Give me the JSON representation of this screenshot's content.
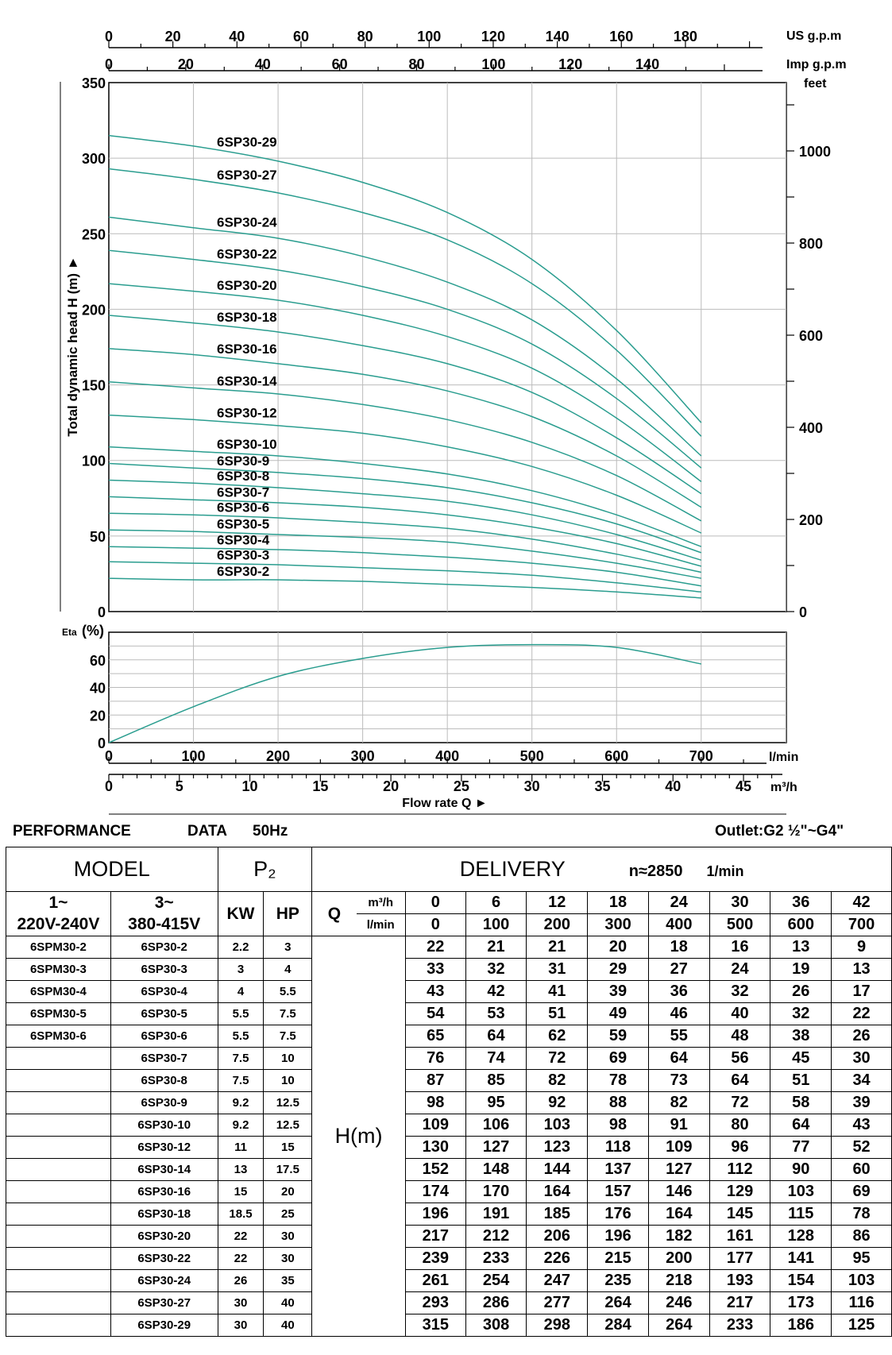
{
  "chart_data": {
    "type": "line",
    "head_chart": {
      "ylabel": "Total dynamic head H (m)",
      "ylim": [
        0,
        350
      ],
      "yticks": [
        0,
        50,
        100,
        150,
        200,
        250,
        300,
        350
      ],
      "right_axis_unit": "feet",
      "right_axis_ticks": [
        "0",
        "200",
        "400",
        "600",
        "800",
        "1000"
      ],
      "top_axis_us_unit": "US g.p.m",
      "top_axis_us_ticks": [
        "0",
        "20",
        "40",
        "60",
        "80",
        "100",
        "120",
        "140",
        "160",
        "180"
      ],
      "top_axis_imp_unit": "Imp g.p.m",
      "top_axis_imp_ticks": [
        "0",
        "20",
        "40",
        "60",
        "80",
        "100",
        "120",
        "140"
      ],
      "x_lmin": [
        0,
        100,
        200,
        300,
        400,
        500,
        600,
        700
      ],
      "series": [
        {
          "name": "6SP30-29",
          "values": [
            315,
            308,
            298,
            284,
            264,
            233,
            186,
            125
          ]
        },
        {
          "name": "6SP30-27",
          "values": [
            293,
            286,
            277,
            264,
            246,
            217,
            173,
            116
          ]
        },
        {
          "name": "6SP30-24",
          "values": [
            261,
            254,
            247,
            235,
            218,
            193,
            154,
            103
          ]
        },
        {
          "name": "6SP30-22",
          "values": [
            239,
            233,
            226,
            215,
            200,
            177,
            141,
            95
          ]
        },
        {
          "name": "6SP30-20",
          "values": [
            217,
            212,
            206,
            196,
            182,
            161,
            128,
            86
          ]
        },
        {
          "name": "6SP30-18",
          "values": [
            196,
            191,
            185,
            176,
            164,
            145,
            115,
            78
          ]
        },
        {
          "name": "6SP30-16",
          "values": [
            174,
            170,
            164,
            157,
            146,
            129,
            103,
            69
          ]
        },
        {
          "name": "6SP30-14",
          "values": [
            152,
            148,
            144,
            137,
            127,
            112,
            90,
            60
          ]
        },
        {
          "name": "6SP30-12",
          "values": [
            130,
            127,
            123,
            118,
            109,
            96,
            77,
            52
          ]
        },
        {
          "name": "6SP30-10",
          "values": [
            109,
            106,
            103,
            98,
            91,
            80,
            64,
            43
          ]
        },
        {
          "name": "6SP30-9",
          "values": [
            98,
            95,
            92,
            88,
            82,
            72,
            58,
            39
          ]
        },
        {
          "name": "6SP30-8",
          "values": [
            87,
            85,
            82,
            78,
            73,
            64,
            51,
            34
          ]
        },
        {
          "name": "6SP30-7",
          "values": [
            76,
            74,
            72,
            69,
            64,
            56,
            45,
            30
          ]
        },
        {
          "name": "6SP30-6",
          "values": [
            65,
            64,
            62,
            59,
            55,
            48,
            38,
            26
          ]
        },
        {
          "name": "6SP30-5",
          "values": [
            54,
            53,
            51,
            49,
            46,
            40,
            32,
            22
          ]
        },
        {
          "name": "6SP30-4",
          "values": [
            43,
            42,
            41,
            39,
            36,
            32,
            26,
            17
          ]
        },
        {
          "name": "6SP30-3",
          "values": [
            33,
            32,
            31,
            29,
            27,
            24,
            19,
            13
          ]
        },
        {
          "name": "6SP30-2",
          "values": [
            22,
            21,
            21,
            20,
            18,
            16,
            13,
            9
          ]
        }
      ]
    },
    "eta_chart": {
      "ylabel_prefix": "Eta",
      "ylabel_unit": "(%)",
      "ylim": [
        0,
        80
      ],
      "yticks": [
        0,
        20,
        40,
        60
      ],
      "x_lmin": [
        0,
        100,
        200,
        300,
        400,
        500,
        600,
        700
      ],
      "values": [
        0,
        26,
        48,
        61,
        69,
        71,
        69,
        57
      ]
    },
    "x_axis_lmin": {
      "unit": "l/min",
      "ticks": [
        "0",
        "100",
        "200",
        "300",
        "400",
        "500",
        "600",
        "700"
      ]
    },
    "x_axis_m3h": {
      "unit": "m³/h",
      "ticks": [
        "0",
        "5",
        "10",
        "15",
        "20",
        "25",
        "30",
        "35",
        "40",
        "45"
      ]
    },
    "xlabel": "Flow rate Q ►",
    "line_color": "#2a9d8f"
  },
  "performance": {
    "title_left": "PERFORMANCE",
    "title_data": "DATA",
    "title_freq": "50Hz",
    "outlet": "Outlet:G2 ½\"~G4\""
  },
  "table": {
    "model_header": "MODEL",
    "p2_header": "P₂",
    "delivery_header": "DELIVERY",
    "speed": "n≈2850",
    "speed_unit": "1/min",
    "phase1": "1~",
    "voltage1": "220V-240V",
    "phase3": "3~",
    "voltage3": "380-415V",
    "kw": "KW",
    "hp": "HP",
    "q": "Q",
    "unit_m3h": "m³/h",
    "unit_lmin": "l/min",
    "h_label": "H(m)",
    "q_m3h": [
      "0",
      "6",
      "12",
      "18",
      "24",
      "30",
      "36",
      "42"
    ],
    "q_lmin": [
      "0",
      "100",
      "200",
      "300",
      "400",
      "500",
      "600",
      "700"
    ],
    "rows": [
      {
        "m1": "6SPM30-2",
        "m3": "6SP30-2",
        "kw": "2.2",
        "hp": "3",
        "h": [
          "22",
          "21",
          "21",
          "20",
          "18",
          "16",
          "13",
          "9"
        ]
      },
      {
        "m1": "6SPM30-3",
        "m3": "6SP30-3",
        "kw": "3",
        "hp": "4",
        "h": [
          "33",
          "32",
          "31",
          "29",
          "27",
          "24",
          "19",
          "13"
        ]
      },
      {
        "m1": "6SPM30-4",
        "m3": "6SP30-4",
        "kw": "4",
        "hp": "5.5",
        "h": [
          "43",
          "42",
          "41",
          "39",
          "36",
          "32",
          "26",
          "17"
        ]
      },
      {
        "m1": "6SPM30-5",
        "m3": "6SP30-5",
        "kw": "5.5",
        "hp": "7.5",
        "h": [
          "54",
          "53",
          "51",
          "49",
          "46",
          "40",
          "32",
          "22"
        ]
      },
      {
        "m1": "6SPM30-6",
        "m3": "6SP30-6",
        "kw": "5.5",
        "hp": "7.5",
        "h": [
          "65",
          "64",
          "62",
          "59",
          "55",
          "48",
          "38",
          "26"
        ]
      },
      {
        "m1": "",
        "m3": "6SP30-7",
        "kw": "7.5",
        "hp": "10",
        "h": [
          "76",
          "74",
          "72",
          "69",
          "64",
          "56",
          "45",
          "30"
        ]
      },
      {
        "m1": "",
        "m3": "6SP30-8",
        "kw": "7.5",
        "hp": "10",
        "h": [
          "87",
          "85",
          "82",
          "78",
          "73",
          "64",
          "51",
          "34"
        ]
      },
      {
        "m1": "",
        "m3": "6SP30-9",
        "kw": "9.2",
        "hp": "12.5",
        "h": [
          "98",
          "95",
          "92",
          "88",
          "82",
          "72",
          "58",
          "39"
        ]
      },
      {
        "m1": "",
        "m3": "6SP30-10",
        "kw": "9.2",
        "hp": "12.5",
        "h": [
          "109",
          "106",
          "103",
          "98",
          "91",
          "80",
          "64",
          "43"
        ]
      },
      {
        "m1": "",
        "m3": "6SP30-12",
        "kw": "11",
        "hp": "15",
        "h": [
          "130",
          "127",
          "123",
          "118",
          "109",
          "96",
          "77",
          "52"
        ]
      },
      {
        "m1": "",
        "m3": "6SP30-14",
        "kw": "13",
        "hp": "17.5",
        "h": [
          "152",
          "148",
          "144",
          "137",
          "127",
          "112",
          "90",
          "60"
        ]
      },
      {
        "m1": "",
        "m3": "6SP30-16",
        "kw": "15",
        "hp": "20",
        "h": [
          "174",
          "170",
          "164",
          "157",
          "146",
          "129",
          "103",
          "69"
        ]
      },
      {
        "m1": "",
        "m3": "6SP30-18",
        "kw": "18.5",
        "hp": "25",
        "h": [
          "196",
          "191",
          "185",
          "176",
          "164",
          "145",
          "115",
          "78"
        ]
      },
      {
        "m1": "",
        "m3": "6SP30-20",
        "kw": "22",
        "hp": "30",
        "h": [
          "217",
          "212",
          "206",
          "196",
          "182",
          "161",
          "128",
          "86"
        ]
      },
      {
        "m1": "",
        "m3": "6SP30-22",
        "kw": "22",
        "hp": "30",
        "h": [
          "239",
          "233",
          "226",
          "215",
          "200",
          "177",
          "141",
          "95"
        ]
      },
      {
        "m1": "",
        "m3": "6SP30-24",
        "kw": "26",
        "hp": "35",
        "h": [
          "261",
          "254",
          "247",
          "235",
          "218",
          "193",
          "154",
          "103"
        ]
      },
      {
        "m1": "",
        "m3": "6SP30-27",
        "kw": "30",
        "hp": "40",
        "h": [
          "293",
          "286",
          "277",
          "264",
          "246",
          "217",
          "173",
          "116"
        ]
      },
      {
        "m1": "",
        "m3": "6SP30-29",
        "kw": "30",
        "hp": "40",
        "h": [
          "315",
          "308",
          "298",
          "284",
          "264",
          "233",
          "186",
          "125"
        ]
      }
    ]
  }
}
